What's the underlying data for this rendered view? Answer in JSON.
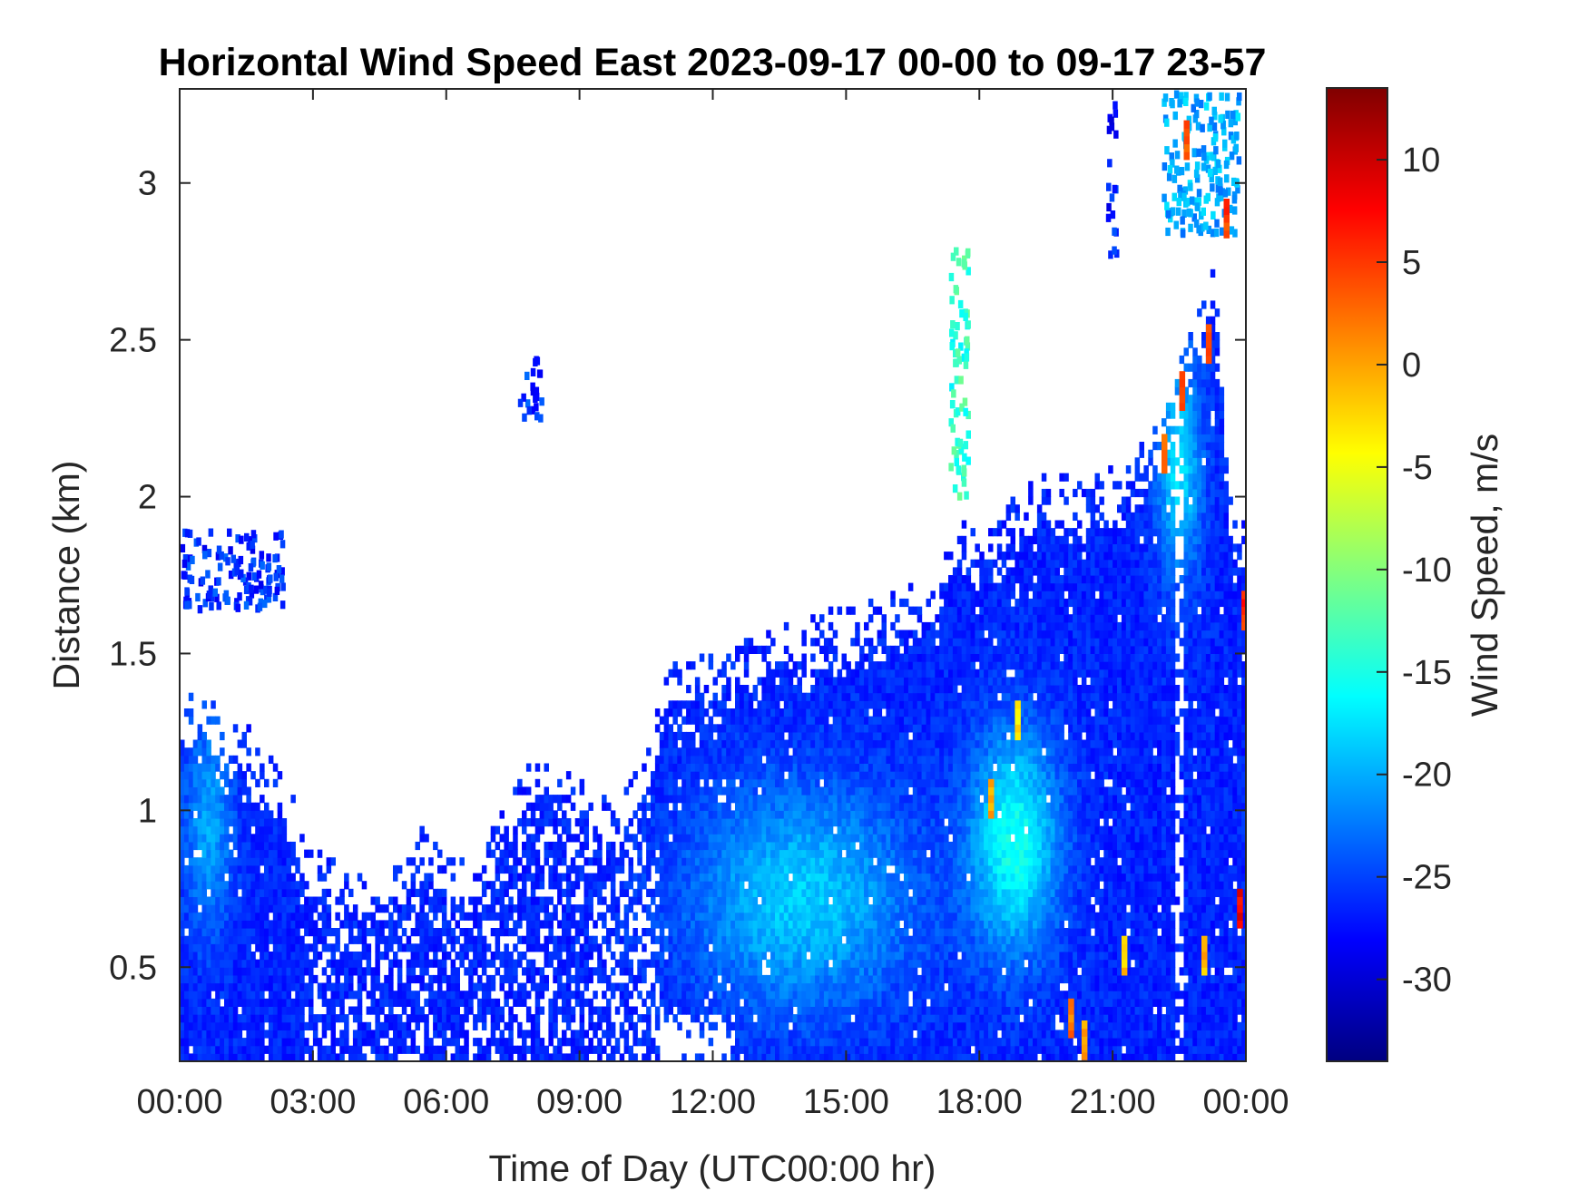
{
  "chart_data": {
    "type": "heatmap",
    "title": "Horizontal Wind Speed East 2023-09-17 00-00 to 09-17 23-57",
    "xlabel": "Time of Day (UTC00:00 hr)",
    "ylabel": "Distance (km)",
    "x_unit": "hours",
    "xlim": [
      0,
      24
    ],
    "ylim": [
      0.2,
      3.3
    ],
    "xticks": [
      0,
      3,
      6,
      9,
      12,
      15,
      18,
      21,
      24
    ],
    "xtick_labels": [
      "00:00",
      "03:00",
      "06:00",
      "09:00",
      "12:00",
      "15:00",
      "18:00",
      "21:00",
      "00:00"
    ],
    "yticks": [
      0.5,
      1,
      1.5,
      2,
      2.5,
      3
    ],
    "ytick_labels": [
      "0.5",
      "1",
      "1.5",
      "2",
      "2.5",
      "3"
    ],
    "colorbar": {
      "label": "Wind Speed, m/s",
      "clim": [
        -34,
        13.5
      ],
      "ticks": [
        -30,
        -25,
        -20,
        -15,
        -10,
        -5,
        0,
        5,
        10
      ],
      "tick_labels": [
        "-30",
        "-25",
        "-20",
        "-15",
        "-10",
        "-5",
        "0",
        "5",
        "10"
      ],
      "colormap": "jet"
    },
    "grid": false,
    "data_top_km": [
      {
        "t": 0,
        "km": 1.27
      },
      {
        "t": 1,
        "km": 1.2
      },
      {
        "t": 1.8,
        "km": 1.13
      },
      {
        "t": 2.5,
        "km": 0.95
      },
      {
        "t": 2.8,
        "km": 0.78
      },
      {
        "t": 3.5,
        "km": 0.72
      },
      {
        "t": 4.5,
        "km": 0.68
      },
      {
        "t": 5.5,
        "km": 0.83
      },
      {
        "t": 6.5,
        "km": 0.7
      },
      {
        "t": 7.2,
        "km": 0.88
      },
      {
        "t": 8.2,
        "km": 1.1
      },
      {
        "t": 9,
        "km": 0.98
      },
      {
        "t": 9.8,
        "km": 0.9
      },
      {
        "t": 10.5,
        "km": 1.05
      },
      {
        "t": 11,
        "km": 1.35
      },
      {
        "t": 12,
        "km": 1.38
      },
      {
        "t": 13,
        "km": 1.45
      },
      {
        "t": 14,
        "km": 1.5
      },
      {
        "t": 15,
        "km": 1.53
      },
      {
        "t": 16,
        "km": 1.58
      },
      {
        "t": 17,
        "km": 1.62
      },
      {
        "t": 17.6,
        "km": 1.85
      },
      {
        "t": 18,
        "km": 1.78
      },
      {
        "t": 19,
        "km": 1.93
      },
      {
        "t": 20,
        "km": 1.97
      },
      {
        "t": 21,
        "km": 1.97
      },
      {
        "t": 21.7,
        "km": 2.05
      },
      {
        "t": 22.3,
        "km": 2.2
      },
      {
        "t": 22.8,
        "km": 2.45
      },
      {
        "t": 23.3,
        "km": 2.65
      },
      {
        "t": 23.7,
        "km": 1.8
      },
      {
        "t": 24,
        "km": 1.8
      }
    ],
    "features": [
      {
        "t_start": 11.5,
        "t_end": 16.5,
        "km_center": 0.72,
        "wind_speed": -19
      },
      {
        "t_start": 17.8,
        "t_end": 19.8,
        "km_center": 0.9,
        "wind_speed": -16
      },
      {
        "t_start": 0.1,
        "t_end": 1.2,
        "km_center": 0.95,
        "wind_speed": -21
      },
      {
        "t_start": 22.0,
        "t_end": 23.0,
        "km_center": 2.1,
        "wind_speed": -18
      }
    ],
    "isolated_echoes": [
      {
        "t_start": 0.0,
        "t_end": 2.3,
        "km_start": 1.65,
        "km_end": 1.9,
        "wind_speed": -26
      },
      {
        "t_start": 7.6,
        "t_end": 8.1,
        "km_start": 2.26,
        "km_end": 2.45,
        "wind_speed": -26
      },
      {
        "t_start": 17.3,
        "t_end": 17.7,
        "km_start": 2.0,
        "km_end": 2.8,
        "wind_speed": -14
      },
      {
        "t_start": 20.85,
        "t_end": 21.05,
        "km_start": 2.78,
        "km_end": 3.28,
        "wind_speed": -27
      },
      {
        "t_start": 22.1,
        "t_end": 23.8,
        "km_start": 2.85,
        "km_end": 3.3,
        "wind_speed": -20
      }
    ],
    "hot_spots": [
      {
        "t": 18.2,
        "km": 1.05,
        "wind_speed": 0
      },
      {
        "t": 18.8,
        "km": 1.3,
        "wind_speed": -3
      },
      {
        "t": 20.0,
        "km": 0.35,
        "wind_speed": 2
      },
      {
        "t": 20.3,
        "km": 0.28,
        "wind_speed": 0
      },
      {
        "t": 21.2,
        "km": 0.55,
        "wind_speed": -2
      },
      {
        "t": 22.1,
        "km": 2.15,
        "wind_speed": 3
      },
      {
        "t": 22.5,
        "km": 2.35,
        "wind_speed": 6
      },
      {
        "t": 23.1,
        "km": 2.5,
        "wind_speed": 4
      },
      {
        "t": 23.5,
        "km": 2.9,
        "wind_speed": 5
      },
      {
        "t": 23.8,
        "km": 0.7,
        "wind_speed": 8
      },
      {
        "t": 23.9,
        "km": 1.65,
        "wind_speed": 6
      },
      {
        "t": 23.0,
        "km": 0.55,
        "wind_speed": -1
      },
      {
        "t": 22.6,
        "km": 3.15,
        "wind_speed": 4
      }
    ]
  }
}
